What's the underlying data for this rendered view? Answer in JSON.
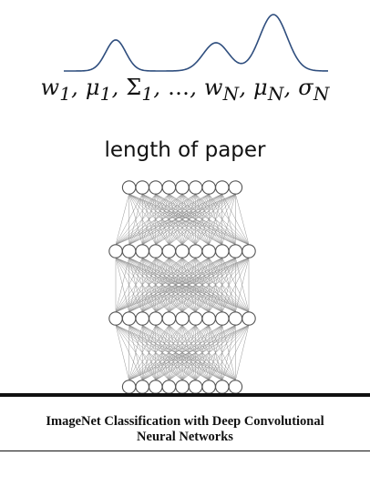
{
  "formula": {
    "w1": "w",
    "w1_sub": "1",
    "mu1": "μ",
    "mu1_sub": "1",
    "sigma1": "Σ",
    "sigma1_sub": "1",
    "ellipsis": "…",
    "wN": "w",
    "wN_sub": "N",
    "muN": "μ",
    "muN_sub": "N",
    "sigmaN": "σ",
    "sigmaN_sub": "N"
  },
  "caption": "length of paper",
  "paper_title": {
    "line1": "ImageNet Classification with Deep Convolutional",
    "line2": "Neural Networks"
  },
  "mixture_curve": {
    "color": "#2f4e7e",
    "components": [
      {
        "weight": 0.55,
        "mean": 127,
        "sd": 11
      },
      {
        "weight": 0.5,
        "mean": 237,
        "sd": 14
      },
      {
        "weight": 1.0,
        "mean": 300,
        "sd": 15
      }
    ]
  },
  "network": {
    "layer_node_counts": [
      9,
      11,
      11,
      9
    ],
    "node_color": "#555555"
  }
}
